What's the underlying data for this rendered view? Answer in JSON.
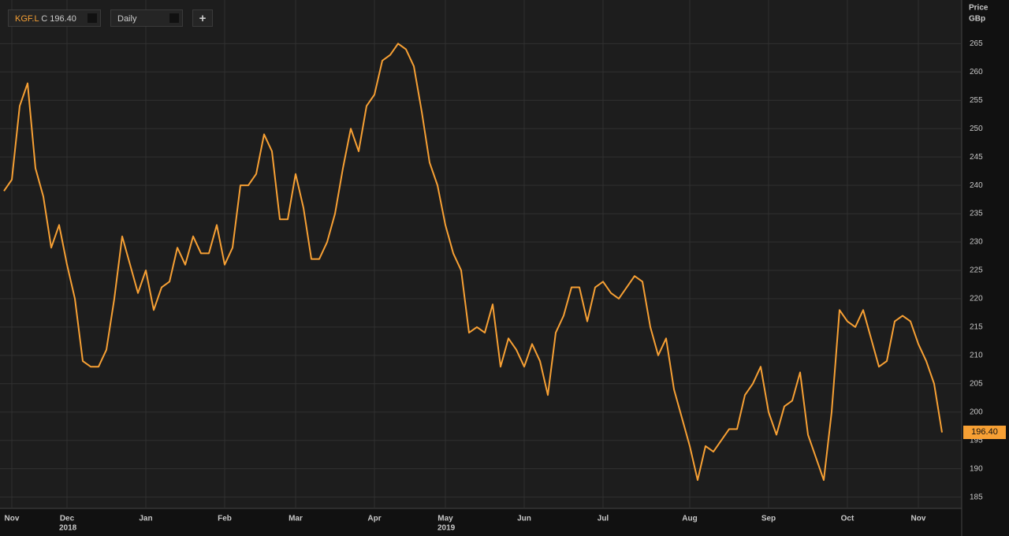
{
  "ui": {
    "ticker": "KGF.L",
    "close_label": "C 196.40",
    "interval": "Daily",
    "add_button": "+",
    "last_price": "196.40"
  },
  "chart_data": {
    "type": "line",
    "ylabel_lines": [
      "Price",
      "GBp"
    ],
    "x_year_labels": [
      "2018",
      "2019"
    ],
    "categories": [
      null,
      "Nov",
      null,
      null,
      null,
      null,
      null,
      null,
      "Dec",
      null,
      null,
      null,
      null,
      null,
      null,
      null,
      null,
      null,
      "Jan",
      null,
      null,
      null,
      null,
      null,
      null,
      null,
      null,
      null,
      "Feb",
      null,
      null,
      null,
      null,
      null,
      null,
      null,
      null,
      "Mar",
      null,
      null,
      null,
      null,
      null,
      null,
      null,
      null,
      null,
      "Apr",
      null,
      null,
      null,
      null,
      null,
      null,
      null,
      null,
      "May",
      null,
      null,
      null,
      null,
      null,
      null,
      null,
      null,
      null,
      "Jun",
      null,
      null,
      null,
      null,
      null,
      null,
      null,
      null,
      null,
      "Jul",
      null,
      null,
      null,
      null,
      null,
      null,
      null,
      null,
      null,
      null,
      "Aug",
      null,
      null,
      null,
      null,
      null,
      null,
      null,
      null,
      null,
      "Sep",
      null,
      null,
      null,
      null,
      null,
      null,
      null,
      null,
      null,
      "Oct",
      null,
      null,
      null,
      null,
      null,
      null,
      null,
      null,
      "Nov",
      null,
      null,
      null
    ],
    "series": [
      {
        "name": "KGF.L",
        "color": "#f7a034",
        "values": [
          239,
          241,
          254,
          258,
          243,
          238,
          229,
          233,
          226,
          220,
          209,
          208,
          208,
          211,
          220,
          231,
          226,
          221,
          225,
          218,
          222,
          223,
          229,
          226,
          231,
          228,
          228,
          233,
          226,
          229,
          240,
          240,
          242,
          249,
          246,
          234,
          234,
          242,
          236,
          227,
          227,
          230,
          235,
          243,
          250,
          246,
          254,
          256,
          262,
          263,
          265,
          264,
          261,
          253,
          244,
          240,
          233,
          228,
          225,
          214,
          215,
          214,
          219,
          208,
          213,
          211,
          208,
          212,
          209,
          203,
          214,
          217,
          222,
          222,
          216,
          222,
          223,
          221,
          220,
          222,
          224,
          223,
          215,
          210,
          213,
          204,
          199,
          194,
          188,
          194,
          193,
          195,
          197,
          197,
          203,
          205,
          208,
          200,
          196,
          201,
          202,
          207,
          196,
          192,
          188,
          200,
          218,
          216,
          215,
          218,
          213,
          208,
          209,
          216,
          217,
          216,
          212,
          209,
          205,
          196.4
        ]
      }
    ],
    "ylim": [
      183,
      272
    ],
    "yticks": [
      185,
      190,
      195,
      200,
      205,
      210,
      215,
      220,
      225,
      230,
      235,
      240,
      245,
      250,
      255,
      260,
      265
    ],
    "grid": true
  }
}
